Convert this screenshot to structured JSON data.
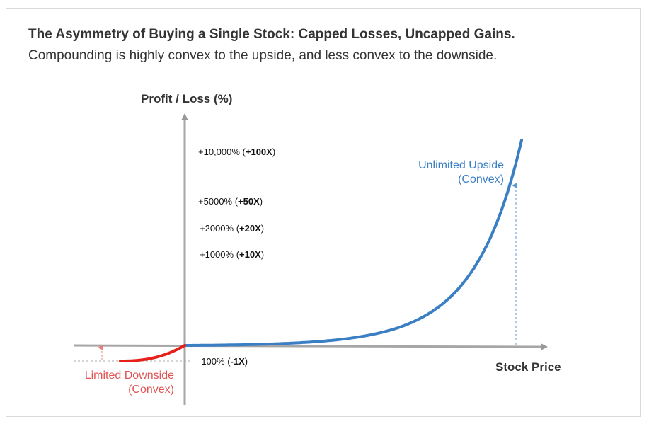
{
  "chart_data": {
    "type": "line",
    "title": "The Asymmetry of Buying a Single Stock: Capped Losses, Uncapped Gains.",
    "subtitle": "Compounding is highly convex to the upside, and less convex to the downside.",
    "ylabel": "Profit / Loss (%)",
    "xlabel": "Stock Price",
    "y_ticks": [
      {
        "pct": "+10,000%",
        "mult": "+100X",
        "value": 10000
      },
      {
        "pct": "+5000%",
        "mult": "+50X",
        "value": 5000
      },
      {
        "pct": "+2000%",
        "mult": "+20X",
        "value": 2000
      },
      {
        "pct": "+1000%",
        "mult": "+10X",
        "value": 1000
      },
      {
        "pct": "-100%",
        "mult": "-1X",
        "value": -100
      }
    ],
    "series": [
      {
        "name": "Unlimited Upside (Convex)",
        "color": "#3a7fc4"
      },
      {
        "name": "Limited Downside (Convex)",
        "color": "#e8201a"
      }
    ],
    "annotations": {
      "upside": [
        "Unlimited Upside",
        "(Convex)"
      ],
      "downside": [
        "Limited Downside",
        "(Convex)"
      ]
    }
  }
}
